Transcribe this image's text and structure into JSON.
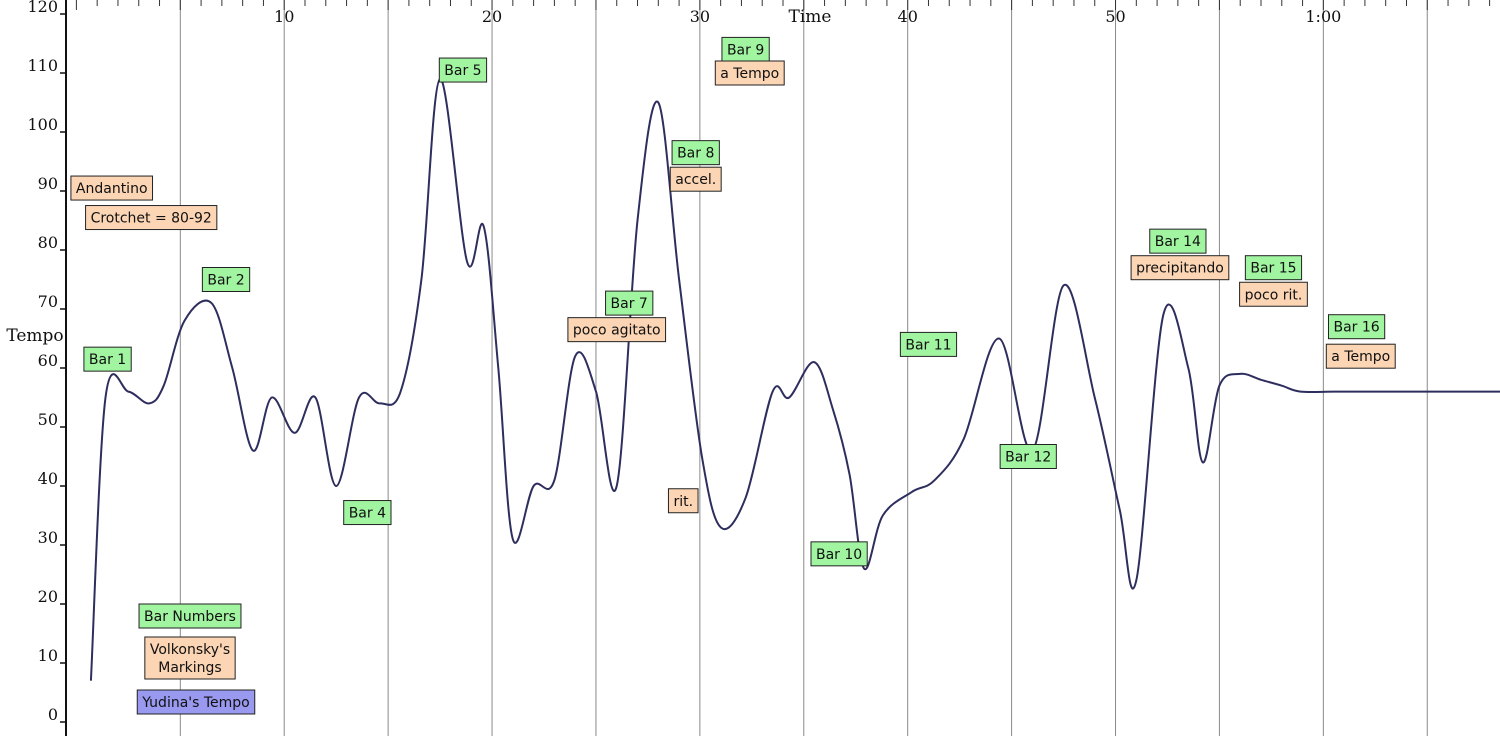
{
  "chart_data": {
    "type": "line",
    "xlabel": "Time",
    "ylabel": "Tempo",
    "xlim": [
      -0.5,
      68.5
    ],
    "ylim": [
      0,
      120
    ],
    "yticks": [
      "0",
      "10",
      "20",
      "30",
      "40",
      "50",
      "60",
      "70",
      "80",
      "90",
      "100",
      "110",
      "120"
    ],
    "xticks": [
      {
        "x": 10,
        "label": "10"
      },
      {
        "x": 20,
        "label": "20"
      },
      {
        "x": 30,
        "label": "30"
      },
      {
        "x": 40,
        "label": "40"
      },
      {
        "x": 50,
        "label": "50"
      },
      {
        "x": 60,
        "label": "1:00"
      }
    ],
    "gridlines_x": [
      5,
      10,
      15,
      20,
      25,
      30,
      35,
      40,
      45,
      50,
      55,
      60,
      65
    ],
    "series": [
      {
        "name": "Yudina's Tempo",
        "color": "#2e2e5e",
        "x": [
          0.7,
          1.4,
          2.5,
          3.5,
          4.2,
          5.2,
          6.5,
          7.5,
          8.5,
          9.4,
          10.5,
          11.5,
          12.5,
          13.6,
          14.6,
          15.6,
          16.6,
          17.5,
          18.8,
          19.6,
          20.3,
          21.0,
          22.0,
          23.0,
          24.0,
          25.0,
          26.0,
          27.0,
          28.0,
          29.0,
          30.1,
          31.0,
          32.2,
          33.5,
          34.3,
          35.5,
          36.4,
          37.2,
          37.9,
          38.8,
          40.2,
          41.3,
          42.7,
          44.4,
          46.0,
          47.5,
          49.0,
          50.2,
          51.0,
          52.3,
          53.5,
          54.2,
          55.0,
          56.0,
          57.0,
          58.0,
          58.9,
          60.5,
          62.0,
          64.0,
          66.0,
          68.5
        ],
        "y": [
          7,
          55,
          56,
          54,
          57,
          68,
          71,
          60,
          46,
          55,
          49,
          55,
          40,
          55,
          54,
          56,
          75,
          109,
          78,
          84,
          60,
          31,
          40,
          41,
          62,
          56,
          40,
          85,
          105,
          75,
          45,
          33,
          38,
          56,
          55,
          61,
          53,
          42,
          26,
          35,
          39,
          41,
          48,
          65,
          46,
          74,
          55,
          36,
          24,
          69,
          60,
          44,
          57,
          59,
          58,
          57,
          56,
          56,
          56,
          56,
          56,
          56
        ]
      }
    ],
    "annotations": [
      {
        "text": "Bar 1",
        "x": 1.5,
        "y": 61.5,
        "kind": "bar"
      },
      {
        "text": "Bar 2",
        "x": 7.2,
        "y": 75,
        "kind": "bar"
      },
      {
        "text": "Bar 4",
        "x": 14.0,
        "y": 35.5,
        "kind": "bar"
      },
      {
        "text": "Bar 5",
        "x": 18.6,
        "y": 110.5,
        "kind": "bar"
      },
      {
        "text": "Bar 7",
        "x": 26.6,
        "y": 71,
        "kind": "bar"
      },
      {
        "text": "Bar 8",
        "x": 29.8,
        "y": 96.5,
        "kind": "bar"
      },
      {
        "text": "Bar 9",
        "x": 32.2,
        "y": 114,
        "kind": "bar"
      },
      {
        "text": "Bar 10",
        "x": 36.7,
        "y": 28.5,
        "kind": "bar"
      },
      {
        "text": "Bar 11",
        "x": 41.0,
        "y": 64,
        "kind": "bar"
      },
      {
        "text": "Bar 12",
        "x": 45.8,
        "y": 45,
        "kind": "bar"
      },
      {
        "text": "Bar 14",
        "x": 53.0,
        "y": 81.5,
        "kind": "bar"
      },
      {
        "text": "Bar 15",
        "x": 57.6,
        "y": 77,
        "kind": "bar"
      },
      {
        "text": "Bar 16",
        "x": 61.6,
        "y": 67,
        "kind": "bar"
      },
      {
        "text": "Andantino",
        "x": 1.7,
        "y": 90.5,
        "kind": "marking"
      },
      {
        "text": "Crotchet = 80-92",
        "x": 3.6,
        "y": 85.5,
        "kind": "marking"
      },
      {
        "text": "poco agitato",
        "x": 26.0,
        "y": 66.5,
        "kind": "marking"
      },
      {
        "text": "accel.",
        "x": 29.8,
        "y": 92,
        "kind": "marking"
      },
      {
        "text": "rit.",
        "x": 29.2,
        "y": 37.5,
        "kind": "marking"
      },
      {
        "text": "a Tempo",
        "x": 32.4,
        "y": 110,
        "kind": "marking"
      },
      {
        "text": "precipitando",
        "x": 53.1,
        "y": 77,
        "kind": "marking"
      },
      {
        "text": "poco rit.",
        "x": 57.6,
        "y": 72.5,
        "kind": "marking"
      },
      {
        "text": "a Tempo",
        "x": 61.8,
        "y": 62,
        "kind": "marking"
      }
    ],
    "legend": {
      "placement": "bottom-left",
      "items": [
        {
          "text": "Bar Numbers",
          "kind": "bar"
        },
        {
          "text": "Volkonsky's Markings",
          "kind": "marking"
        },
        {
          "text": "Yudina's Tempo",
          "kind": "tempo"
        }
      ]
    },
    "colors": {
      "bar_fill": "#a1f5a1",
      "marking_fill": "#fcd5b5",
      "tempo_fill": "#9999f0",
      "line": "#2e2e5e",
      "grid": "#8a8a8a"
    }
  }
}
